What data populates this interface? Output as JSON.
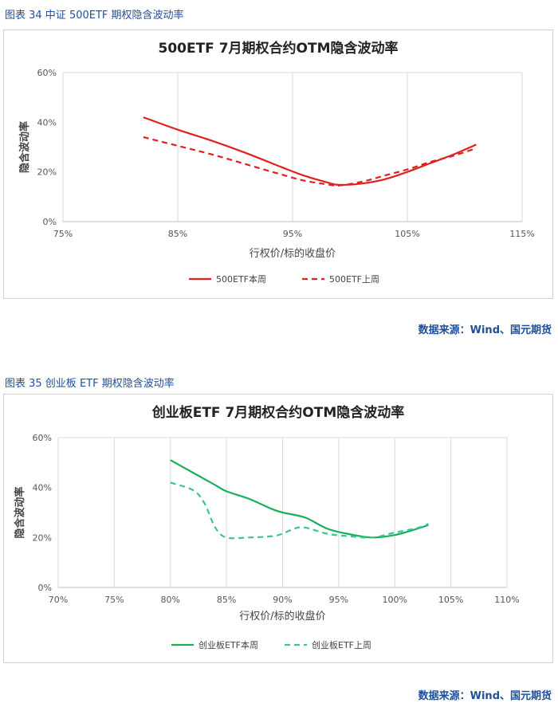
{
  "figures": [
    {
      "caption": "图表 34  中证 500ETF 期权隐含波动率",
      "source": "数据来源：Wind、国元期货",
      "chart_data": {
        "type": "line",
        "title": "500ETF  7月期权合约OTM隐含波动率",
        "xlabel": "行权价/标的收盘价",
        "ylabel": "隐含波动率",
        "xlim": [
          75,
          115
        ],
        "ylim": [
          0,
          60
        ],
        "x_ticks": [
          75,
          85,
          95,
          105,
          115
        ],
        "y_ticks": [
          0,
          20,
          40,
          60
        ],
        "x_tick_labels": [
          "75%",
          "85%",
          "95%",
          "105%",
          "115%"
        ],
        "y_tick_labels": [
          "0%",
          "20%",
          "40%",
          "60%"
        ],
        "grid": "vertical",
        "legend": "bottom",
        "series": [
          {
            "name": "500ETF本周",
            "style": "solid",
            "color": "#e02020",
            "x": [
              82,
              85,
              88,
              91,
              94,
              96,
              98,
              99,
              101,
              103,
              105,
              107,
              109,
              111
            ],
            "y": [
              42,
              37,
              32.5,
              27.5,
              22,
              18.5,
              15.8,
              14.8,
              15.3,
              17,
              20,
              23.5,
              27,
              31
            ]
          },
          {
            "name": "500ETF上周",
            "style": "dashed",
            "color": "#e02020",
            "x": [
              82,
              85,
              88,
              91,
              94,
              96,
              98,
              99,
              101,
              103,
              105,
              107,
              109,
              111
            ],
            "y": [
              34,
              30.5,
              27,
              23,
              19,
              16.5,
              15,
              14.5,
              16,
              18.5,
              21,
              24,
              26.5,
              29.5
            ]
          }
        ]
      }
    },
    {
      "caption": "图表 35  创业板 ETF 期权隐含波动率",
      "source": "数据来源：Wind、国元期货",
      "chart_data": {
        "type": "line",
        "title": "创业板ETF  7月期权合约OTM隐含波动率",
        "xlabel": "行权价/标的收盘价",
        "ylabel": "隐含波动率",
        "xlim": [
          70,
          110
        ],
        "ylim": [
          0,
          60
        ],
        "x_ticks": [
          70,
          75,
          80,
          85,
          90,
          95,
          100,
          105,
          110
        ],
        "y_ticks": [
          0,
          20,
          40,
          60
        ],
        "x_tick_labels": [
          "70%",
          "75%",
          "80%",
          "85%",
          "90%",
          "95%",
          "100%",
          "105%",
          "110%"
        ],
        "y_tick_labels": [
          "0%",
          "20%",
          "40%",
          "60%"
        ],
        "grid": "vertical",
        "legend": "bottom",
        "series": [
          {
            "name": "创业板ETF本周",
            "style": "solid",
            "color": "#1aae5a",
            "x": [
              80,
              82,
              84,
              85,
              87,
              89,
              90,
              92,
              94,
              96,
              98,
              100,
              102,
              103
            ],
            "y": [
              51,
              46,
              41,
              38.5,
              35.5,
              31.5,
              30,
              28,
              23.5,
              21.3,
              20,
              21,
              23.5,
              25
            ]
          },
          {
            "name": "创业板ETF上周",
            "style": "dashed",
            "color": "#3cc396",
            "x": [
              80,
              82,
              83,
              84,
              85,
              87,
              89,
              90,
              91,
              92,
              94,
              96,
              98,
              100,
              102,
              103
            ],
            "y": [
              42,
              39,
              34,
              24,
              20,
              20,
              20.5,
              21.5,
              23.5,
              24,
              21.5,
              20.5,
              20,
              22,
              23.8,
              25.5
            ]
          }
        ]
      }
    }
  ]
}
